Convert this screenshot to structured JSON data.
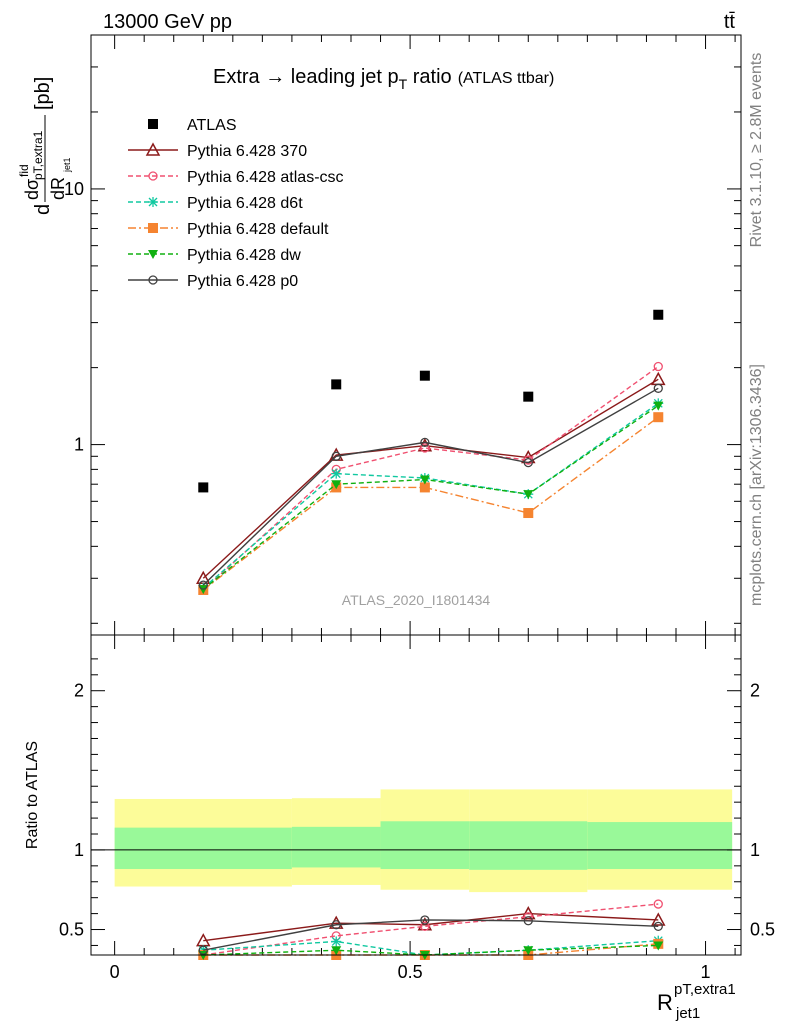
{
  "header": {
    "energy_label": "13000 GeV pp",
    "process_label": "tt̄"
  },
  "side_labels": {
    "rivet": "Rivet 3.1.10, ≥ 2.8M events",
    "source": "mcplots.cern.ch [arXiv:1306.3436]"
  },
  "chart_data": [
    {
      "type": "scatter",
      "panel": "main",
      "title_main": "Extra → leading jet p",
      "title_sub": "T",
      "title_tail": " ratio",
      "title_small": "(ATLAS ttbar)",
      "watermark": "ATLAS_2020_I1801434",
      "ylabel": "dσ^fid / dR^pT,extra1_jet1 [pb]",
      "yscale": "log",
      "ylim": [
        0.18,
        40
      ],
      "xlim": [
        -0.04,
        1.06
      ],
      "ytick_labels": [
        "1",
        "10"
      ],
      "legend_position": "top-left",
      "x": [
        0.15,
        0.375,
        0.525,
        0.7,
        0.92
      ],
      "series": [
        {
          "name": "ATLAS",
          "color": "#000000",
          "marker": "square-filled",
          "line": "none",
          "values": [
            0.68,
            1.72,
            1.86,
            1.54,
            3.22
          ]
        },
        {
          "name": "Pythia 6.428 370",
          "color": "#8b1a1a",
          "marker": "triangle-open",
          "line": "solid",
          "values": [
            0.3,
            0.91,
            0.99,
            0.89,
            1.8
          ]
        },
        {
          "name": "Pythia 6.428 atlas-csc",
          "color": "#f05070",
          "marker": "circle-open",
          "line": "dashed",
          "values": [
            0.27,
            0.8,
            0.97,
            0.87,
            2.02
          ]
        },
        {
          "name": "Pythia 6.428 d6t",
          "color": "#10c8a0",
          "marker": "asterisk",
          "line": "dashed",
          "values": [
            0.275,
            0.77,
            0.74,
            0.64,
            1.45
          ]
        },
        {
          "name": "Pythia 6.428 default",
          "color": "#f58430",
          "marker": "square-filled",
          "line": "dashdot",
          "values": [
            0.27,
            0.68,
            0.68,
            0.54,
            1.28
          ]
        },
        {
          "name": "Pythia 6.428 dw",
          "color": "#10b010",
          "marker": "triangle-down-filled",
          "line": "dashed",
          "values": [
            0.272,
            0.7,
            0.73,
            0.64,
            1.42
          ]
        },
        {
          "name": "Pythia 6.428 p0",
          "color": "#404040",
          "marker": "circle-open",
          "line": "solid",
          "values": [
            0.282,
            0.9,
            1.02,
            0.85,
            1.66
          ]
        }
      ]
    },
    {
      "type": "line",
      "panel": "ratio",
      "ylabel": "Ratio to ATLAS",
      "xlabel_main": "R",
      "xlabel_sup": "pT,extra1",
      "xlabel_sub": "jet1",
      "ylim": [
        0.34,
        2.35
      ],
      "xlim": [
        -0.04,
        1.06
      ],
      "x_tick_labels": [
        "0",
        "0.5",
        "1"
      ],
      "y_tick_labels": [
        "0.5",
        "1",
        "2"
      ],
      "bands": {
        "bin_edges": [
          0.0,
          0.3,
          0.45,
          0.6,
          0.8,
          1.045
        ],
        "green_low": [
          0.88,
          0.89,
          0.88,
          0.875,
          0.88
        ],
        "green_high": [
          1.14,
          1.145,
          1.18,
          1.18,
          1.175
        ],
        "yellow_low": [
          0.77,
          0.78,
          0.75,
          0.735,
          0.75
        ],
        "yellow_high": [
          1.32,
          1.325,
          1.38,
          1.38,
          1.38
        ],
        "green_color": "#99f999",
        "yellow_color": "#fcfc99"
      },
      "x": [
        0.15,
        0.375,
        0.525,
        0.7,
        0.92
      ],
      "series": [
        {
          "name": "Pythia 6.428 370",
          "values": [
            0.43,
            0.54,
            0.53,
            0.6,
            0.56
          ]
        },
        {
          "name": "Pythia 6.428 atlas-csc",
          "values": [
            0.33,
            0.46,
            0.52,
            0.58,
            0.66
          ]
        },
        {
          "name": "Pythia 6.428 d6t",
          "values": [
            0.37,
            0.425,
            0.33,
            0.37,
            0.43
          ]
        },
        {
          "name": "Pythia 6.428 default",
          "values": [
            0.33,
            0.33,
            0.33,
            0.33,
            0.41
          ]
        },
        {
          "name": "Pythia 6.428 dw",
          "values": [
            0.34,
            0.37,
            0.33,
            0.37,
            0.4
          ]
        },
        {
          "name": "Pythia 6.428 p0",
          "values": [
            0.37,
            0.53,
            0.56,
            0.555,
            0.52
          ]
        }
      ]
    }
  ]
}
